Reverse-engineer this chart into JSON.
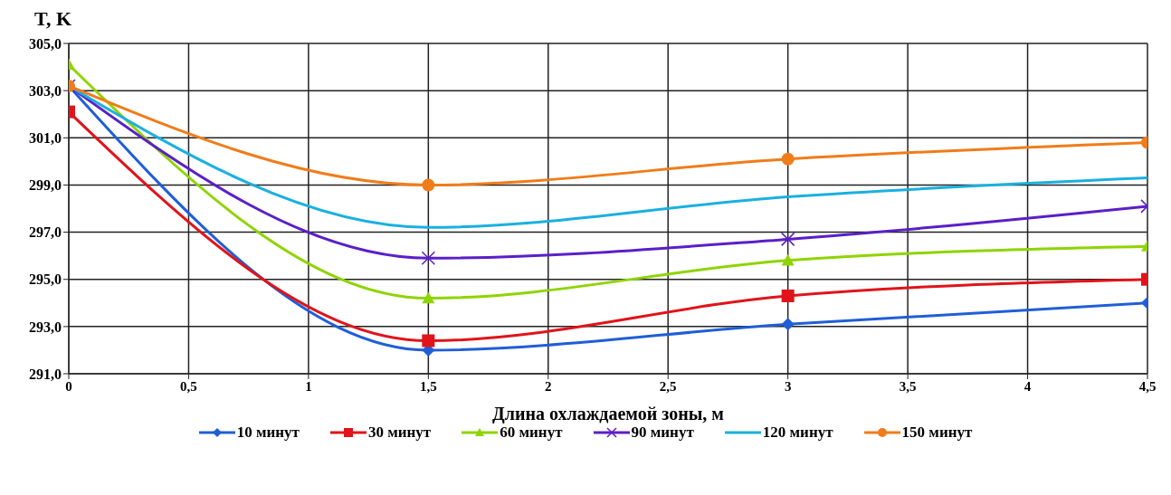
{
  "chart_data": {
    "type": "line",
    "ylabel": "T, K",
    "xlabel": "Длина охлаждаемой зоны, м",
    "x": [
      0,
      1.5,
      3,
      4.5
    ],
    "series": [
      {
        "name": "10 минут",
        "color": "#1f5fd6",
        "marker": "diamond",
        "values": [
          303.2,
          292.0,
          293.1,
          294.0
        ]
      },
      {
        "name": "30 минут",
        "color": "#e0141a",
        "marker": "square",
        "values": [
          302.1,
          292.4,
          294.3,
          295.0
        ]
      },
      {
        "name": "60 минут",
        "color": "#8fd400",
        "marker": "triangle",
        "values": [
          304.1,
          294.2,
          295.8,
          296.4
        ]
      },
      {
        "name": "90 минут",
        "color": "#5a1fc8",
        "marker": "cross",
        "values": [
          303.2,
          295.9,
          296.7,
          298.1
        ]
      },
      {
        "name": "120 минут",
        "color": "#1ab0e0",
        "marker": "none",
        "values": [
          303.2,
          297.2,
          298.5,
          299.3
        ]
      },
      {
        "name": "150 минут",
        "color": "#f07c1a",
        "marker": "circle",
        "values": [
          303.2,
          299.0,
          300.1,
          300.8
        ]
      }
    ],
    "xlim": [
      0,
      4.5
    ],
    "xticks": [
      0,
      {
        "value": 0.5,
        "label": "0,5"
      },
      1,
      {
        "value": 1.5,
        "label": "1,5"
      },
      2,
      {
        "value": 2.5,
        "label": "2,5"
      },
      3,
      {
        "value": 3.5,
        "label": "3,5"
      },
      4,
      {
        "value": 4.5,
        "label": "4,5"
      }
    ],
    "ylim": [
      291,
      305
    ],
    "yticks": [
      {
        "value": 291,
        "label": "291,0"
      },
      {
        "value": 293,
        "label": "293,0"
      },
      {
        "value": 295,
        "label": "295,0"
      },
      {
        "value": 297,
        "label": "297,0"
      },
      {
        "value": 299,
        "label": "299,0"
      },
      {
        "value": 301,
        "label": "301,0"
      },
      {
        "value": 303,
        "label": "303,0"
      },
      {
        "value": 305,
        "label": "305,0"
      }
    ],
    "grid": true,
    "legend": "bottom",
    "line_style": "solid"
  }
}
